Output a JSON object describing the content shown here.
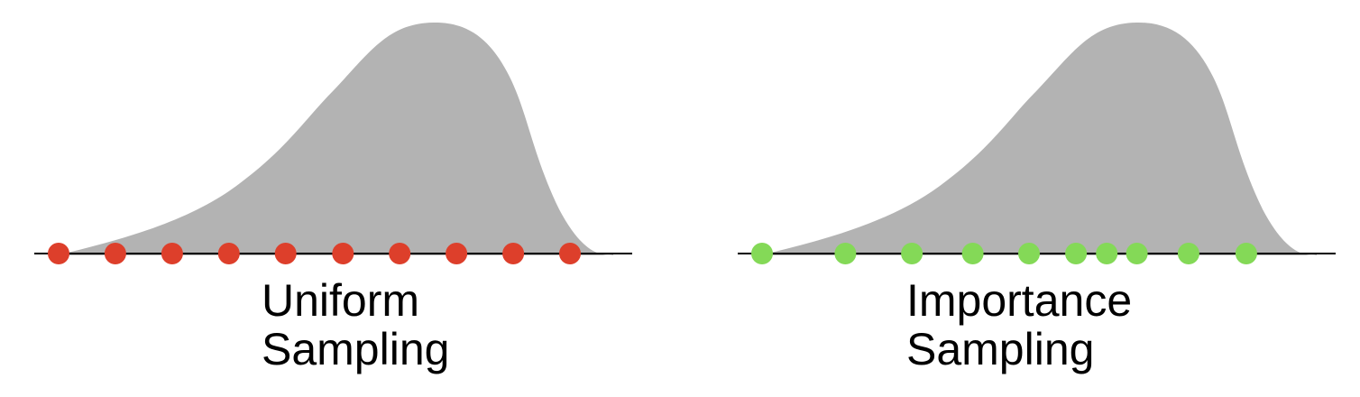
{
  "colors": {
    "density_fill": "#b3b3b3",
    "axis": "#000000",
    "uniform_point": "#dd3f2b",
    "importance_point": "#84d957"
  },
  "panels": [
    {
      "id": "uniform",
      "caption_line1": "Uniform",
      "caption_line2": "Sampling",
      "point_color_key": "uniform_point",
      "sample_positions": [
        0.0,
        0.111,
        0.222,
        0.333,
        0.444,
        0.556,
        0.667,
        0.778,
        0.889,
        1.0
      ]
    },
    {
      "id": "importance",
      "caption_line1": "Importance",
      "caption_line2": "Sampling",
      "point_color_key": "importance_point",
      "sample_positions": [
        0.0,
        0.163,
        0.293,
        0.412,
        0.522,
        0.614,
        0.674,
        0.733,
        0.834,
        0.947
      ]
    }
  ]
}
